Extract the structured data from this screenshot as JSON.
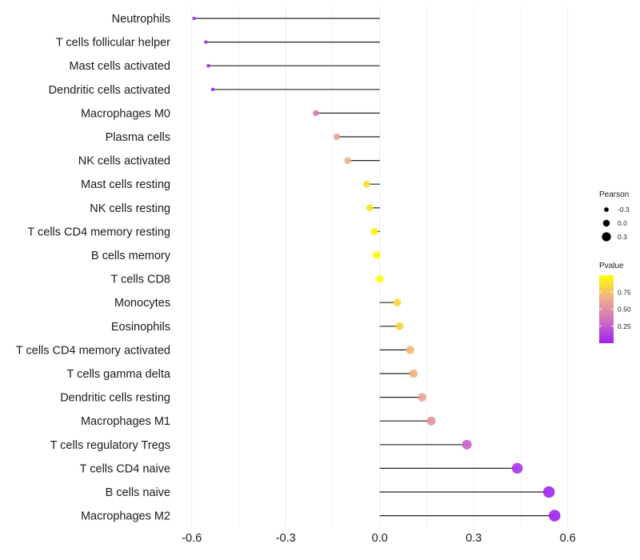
{
  "chart_data": {
    "type": "lollipop",
    "title": "",
    "xlabel": "",
    "ylabel": "",
    "xlim": [
      -0.635,
      0.68
    ],
    "xticks": [
      -0.6,
      -0.3,
      0.0,
      0.3,
      0.6
    ],
    "xtick_labels": [
      "-0.6",
      "-0.3",
      "0.0",
      "0.3",
      "0.6"
    ],
    "grid": "vertical major and minor",
    "categories": [
      "Neutrophils",
      "T cells follicular helper",
      "Mast cells activated",
      "Dendritic cells activated",
      "Macrophages M0",
      "Plasma cells",
      "NK cells activated",
      "Mast cells resting",
      "NK cells resting",
      "T cells CD4 memory resting",
      "B cells memory",
      "T cells CD8",
      "Monocytes",
      "Eosinophils",
      "T cells CD4 memory activated",
      "T cells gamma delta",
      "Dendritic cells resting",
      "Macrophages M1",
      "T cells regulatory  Tregs ",
      "T cells CD4 naive",
      "B cells naive",
      "Macrophages M2"
    ],
    "series": [
      {
        "name": "Pearson",
        "values": [
          -0.593,
          -0.555,
          -0.547,
          -0.533,
          -0.204,
          -0.137,
          -0.102,
          -0.042,
          -0.032,
          -0.017,
          -0.01,
          0.0,
          0.056,
          0.063,
          0.097,
          0.108,
          0.135,
          0.164,
          0.278,
          0.439,
          0.54,
          0.558
        ]
      },
      {
        "name": "Pvalue",
        "values": [
          0.001,
          0.003,
          0.004,
          0.006,
          0.42,
          0.6,
          0.68,
          0.86,
          0.89,
          0.95,
          0.98,
          1.0,
          0.84,
          0.82,
          0.71,
          0.68,
          0.61,
          0.52,
          0.27,
          0.08,
          0.02,
          0.01
        ]
      }
    ],
    "legends": [
      {
        "title": "Pearson",
        "type": "size",
        "entries": [
          "-0.3",
          "0.0",
          "0.3"
        ],
        "position": "right"
      },
      {
        "title": "Pvalue",
        "type": "colorbar",
        "ticks": [
          "0.75",
          "0.50",
          "0.25"
        ],
        "colors": [
          "#a020f0",
          "#cf6fbf",
          "#eeb08a",
          "#ffff00"
        ],
        "range": [
          0,
          1
        ],
        "position": "right"
      }
    ]
  }
}
